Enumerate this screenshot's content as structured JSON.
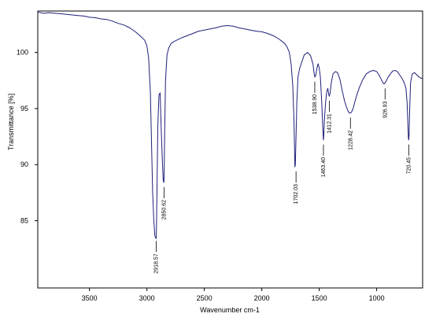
{
  "chart_data": {
    "type": "line",
    "title": "",
    "xlabel": "Wavenumber cm-1",
    "ylabel": "Transmittance [%]",
    "x_reversed": true,
    "xlim": [
      3950,
      600
    ],
    "ylim": [
      79,
      103.7
    ],
    "grid": false,
    "x_ticks": [
      {
        "value": 3500,
        "label": "3500"
      },
      {
        "value": 3000,
        "label": "3000"
      },
      {
        "value": 2500,
        "label": "2500"
      },
      {
        "value": 2000,
        "label": "2000"
      },
      {
        "value": 1500,
        "label": "1500"
      },
      {
        "value": 1000,
        "label": "1000"
      }
    ],
    "y_ticks": [
      {
        "value": 100,
        "label": "100"
      },
      {
        "value": 95,
        "label": "95"
      },
      {
        "value": 90,
        "label": "90"
      },
      {
        "value": 85,
        "label": "85"
      }
    ],
    "line_color": "#1f1f7a",
    "series": [
      {
        "x": [
          3950,
          3900,
          3850,
          3800,
          3750,
          3700,
          3650,
          3600,
          3550,
          3500,
          3450,
          3400,
          3350,
          3300,
          3250,
          3200,
          3150,
          3100,
          3050,
          3020,
          3000,
          2985,
          2970,
          2960,
          2950,
          2940,
          2930,
          2920,
          2918,
          2912,
          2905,
          2895,
          2885,
          2875,
          2865,
          2858,
          2853,
          2850,
          2846,
          2838,
          2825,
          2810,
          2790,
          2760,
          2700,
          2650,
          2600,
          2550,
          2500,
          2450,
          2400,
          2350,
          2300,
          2250,
          2200,
          2150,
          2100,
          2050,
          2000,
          1950,
          1900,
          1850,
          1800,
          1780,
          1760,
          1745,
          1730,
          1720,
          1715,
          1712,
          1708,
          1702,
          1695,
          1685,
          1670,
          1650,
          1630,
          1600,
          1575,
          1555,
          1545,
          1538,
          1530,
          1520,
          1510,
          1500,
          1490,
          1478,
          1470,
          1465,
          1463,
          1461,
          1455,
          1445,
          1435,
          1425,
          1418,
          1412,
          1405,
          1395,
          1380,
          1360,
          1340,
          1320,
          1300,
          1280,
          1265,
          1250,
          1238,
          1228,
          1218,
          1205,
          1190,
          1170,
          1150,
          1120,
          1090,
          1060,
          1030,
          1000,
          980,
          960,
          945,
          935,
          926,
          915,
          900,
          880,
          860,
          840,
          820,
          800,
          780,
          760,
          745,
          735,
          728,
          724,
          721,
          718,
          714,
          705,
          690,
          670,
          650,
          630,
          610,
          600
        ],
        "y": [
          103.6,
          103.5,
          103.55,
          103.5,
          103.45,
          103.4,
          103.35,
          103.3,
          103.25,
          103.15,
          103.1,
          103.0,
          102.95,
          102.8,
          102.6,
          102.45,
          102.2,
          101.85,
          101.4,
          101.1,
          100.6,
          99.5,
          96.5,
          92.0,
          87.5,
          85.0,
          83.6,
          83.4,
          83.6,
          88.0,
          93.5,
          96.2,
          96.4,
          93.0,
          90.2,
          88.6,
          88.4,
          88.9,
          92.5,
          97.5,
          99.8,
          100.4,
          100.8,
          101.0,
          101.3,
          101.5,
          101.7,
          101.9,
          102.0,
          102.1,
          102.2,
          102.35,
          102.4,
          102.35,
          102.2,
          102.1,
          102.0,
          101.9,
          101.85,
          101.7,
          101.5,
          101.2,
          100.8,
          100.5,
          100.0,
          99.0,
          97.0,
          94.0,
          91.5,
          89.8,
          90.0,
          92.5,
          95.5,
          97.8,
          98.6,
          99.2,
          99.8,
          100.0,
          99.7,
          99.0,
          98.2,
          97.8,
          98.0,
          98.6,
          99.0,
          98.6,
          97.8,
          95.5,
          93.5,
          92.4,
          92.2,
          92.5,
          94.0,
          95.5,
          96.5,
          96.8,
          96.3,
          96.1,
          96.4,
          97.3,
          98.1,
          98.3,
          98.2,
          97.6,
          96.6,
          95.7,
          95.2,
          94.8,
          94.6,
          94.6,
          94.7,
          95.0,
          95.6,
          96.3,
          96.9,
          97.6,
          98.1,
          98.3,
          98.4,
          98.3,
          98.0,
          97.6,
          97.3,
          97.2,
          97.3,
          97.5,
          97.8,
          98.1,
          98.35,
          98.4,
          98.3,
          98.0,
          97.7,
          97.3,
          96.8,
          95.5,
          93.5,
          92.4,
          92.2,
          92.6,
          94.5,
          97.3,
          98.1,
          98.2,
          98.0,
          97.8,
          97.7,
          97.7
        ]
      }
    ],
    "annotations": [
      {
        "x": 2918.57,
        "label": "2918.57",
        "from_y": 83.2,
        "to_y": 82.2
      },
      {
        "x": 2850.62,
        "label": "2850.62",
        "from_y": 88.0,
        "to_y": 87.0
      },
      {
        "x": 1702.03,
        "label": "1702.03",
        "from_y": 89.4,
        "to_y": 88.4
      },
      {
        "x": 1538.9,
        "label": "1538.90",
        "from_y": 97.4,
        "to_y": 96.4
      },
      {
        "x": 1463.4,
        "label": "1463.40",
        "from_y": 91.8,
        "to_y": 90.8
      },
      {
        "x": 1412.31,
        "label": "1412.31",
        "from_y": 95.7,
        "to_y": 94.7
      },
      {
        "x": 1228.42,
        "label": "1228.42",
        "from_y": 94.2,
        "to_y": 93.2
      },
      {
        "x": 926.93,
        "label": "926.93",
        "from_y": 96.8,
        "to_y": 95.8
      },
      {
        "x": 720.45,
        "label": "720.45",
        "from_y": 91.8,
        "to_y": 90.8
      }
    ]
  }
}
